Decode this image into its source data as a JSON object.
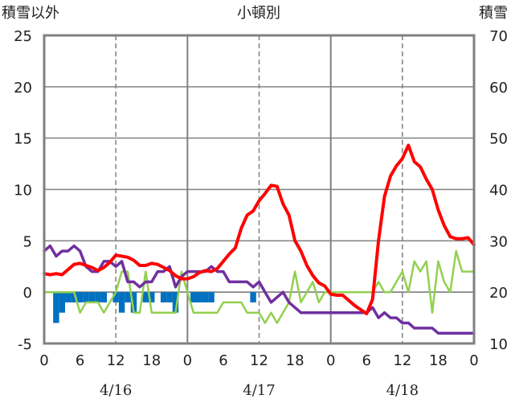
{
  "chart_data": {
    "type": "line",
    "title": "小頓別",
    "left_axis_label": "積雪以外",
    "right_axis_label": "積雪",
    "ylim_left": [
      -5,
      25
    ],
    "ylim_right": [
      10,
      70
    ],
    "yticks_left": [
      "-5",
      "0",
      "5",
      "10",
      "15",
      "20",
      "25"
    ],
    "yticks_right": [
      "10",
      "20",
      "30",
      "40",
      "50",
      "60",
      "70"
    ],
    "xlim_hours": [
      0,
      72
    ],
    "xtick_labels": [
      "0",
      "6",
      "12",
      "18",
      "0",
      "6",
      "12",
      "18",
      "0",
      "6",
      "12",
      "18",
      "0"
    ],
    "day_labels": [
      "4/16",
      "4/17",
      "4/18"
    ],
    "grid": true,
    "colors": {
      "temperature": "#ff0000",
      "snow_depth": "#7030a0",
      "wind": "#92d050",
      "precipitation": "#0070c0",
      "frame": "#808080",
      "grid": "#808080"
    },
    "series": [
      {
        "id": "temperature",
        "axis": "left",
        "values": [
          1.8,
          1.7,
          1.8,
          1.7,
          2.2,
          2.7,
          2.8,
          2.6,
          2.4,
          2.1,
          2.4,
          2.9,
          3.6,
          3.5,
          3.4,
          3.1,
          2.6,
          2.6,
          2.8,
          2.7,
          2.4,
          2.1,
          1.6,
          1.3,
          1.3,
          1.5,
          1.9,
          2.1,
          2.0,
          2.3,
          3.0,
          3.7,
          4.3,
          6.2,
          7.5,
          7.9,
          8.9,
          9.6,
          10.4,
          10.3,
          8.6,
          7.5,
          5.0,
          4.0,
          2.6,
          1.6,
          0.9,
          0.6,
          -0.2,
          -0.3,
          -0.3,
          -0.8,
          -1.3,
          -1.7,
          -2.1,
          -0.7,
          5.0,
          9.3,
          11.3,
          12.3,
          13.0,
          14.3,
          12.7,
          12.2,
          11.0,
          10.0,
          8.0,
          6.5,
          5.4,
          5.2,
          5.2,
          5.3,
          4.6
        ]
      },
      {
        "id": "snow_depth",
        "axis": "right",
        "values": [
          28,
          29,
          27,
          28,
          28,
          29,
          28,
          25,
          24,
          24,
          26,
          26,
          25,
          26,
          22,
          22,
          21,
          22,
          22,
          24,
          24,
          25,
          21,
          23,
          24,
          24,
          24,
          24,
          25,
          24,
          24,
          22,
          22,
          22,
          22,
          21,
          22,
          20,
          18,
          19,
          20,
          18,
          17,
          16,
          16,
          16,
          16,
          16,
          16,
          16,
          16,
          16,
          16,
          16,
          16,
          17,
          15,
          16,
          15,
          15,
          14,
          14,
          13,
          13,
          13,
          13,
          12,
          12,
          12,
          12,
          12,
          12,
          12
        ]
      },
      {
        "id": "wind",
        "axis": "left",
        "values": [
          0,
          0,
          0,
          0,
          0,
          0,
          -2,
          -1,
          -1,
          -1,
          -2,
          -1,
          0,
          2,
          2,
          -2,
          -2,
          2,
          -2,
          -2,
          -2,
          -2,
          -2,
          2,
          0,
          -2,
          -2,
          -2,
          -2,
          -2,
          -1,
          -1,
          -1,
          -1,
          -2,
          -2,
          -2,
          -3,
          -2,
          -3,
          -2,
          -1,
          2,
          -1,
          0,
          1,
          -1,
          0,
          0,
          0,
          0,
          0,
          0,
          0,
          0,
          0,
          1,
          0,
          0,
          1,
          2,
          0,
          3,
          2,
          3,
          -2,
          3,
          1,
          0,
          4,
          2,
          2,
          2
        ]
      },
      {
        "id": "precipitation",
        "axis": "left",
        "values": [
          0,
          0,
          -3,
          -2,
          -1,
          -1,
          -1,
          -1,
          -1,
          -1,
          -1,
          0,
          -1,
          -2,
          -1,
          -2,
          0,
          -1,
          -1,
          0,
          -1,
          -1,
          -2,
          0,
          0,
          -1,
          -1,
          -1,
          -1,
          0,
          0,
          0,
          0,
          0,
          0,
          -1,
          0,
          0,
          0,
          0,
          0,
          0,
          0,
          0,
          0,
          0,
          0,
          0,
          0,
          0,
          0,
          0,
          0,
          0,
          0,
          0,
          0,
          0,
          0,
          0,
          0,
          0,
          0,
          0,
          0,
          0,
          0,
          0,
          0,
          0,
          0,
          0,
          0
        ]
      }
    ]
  }
}
